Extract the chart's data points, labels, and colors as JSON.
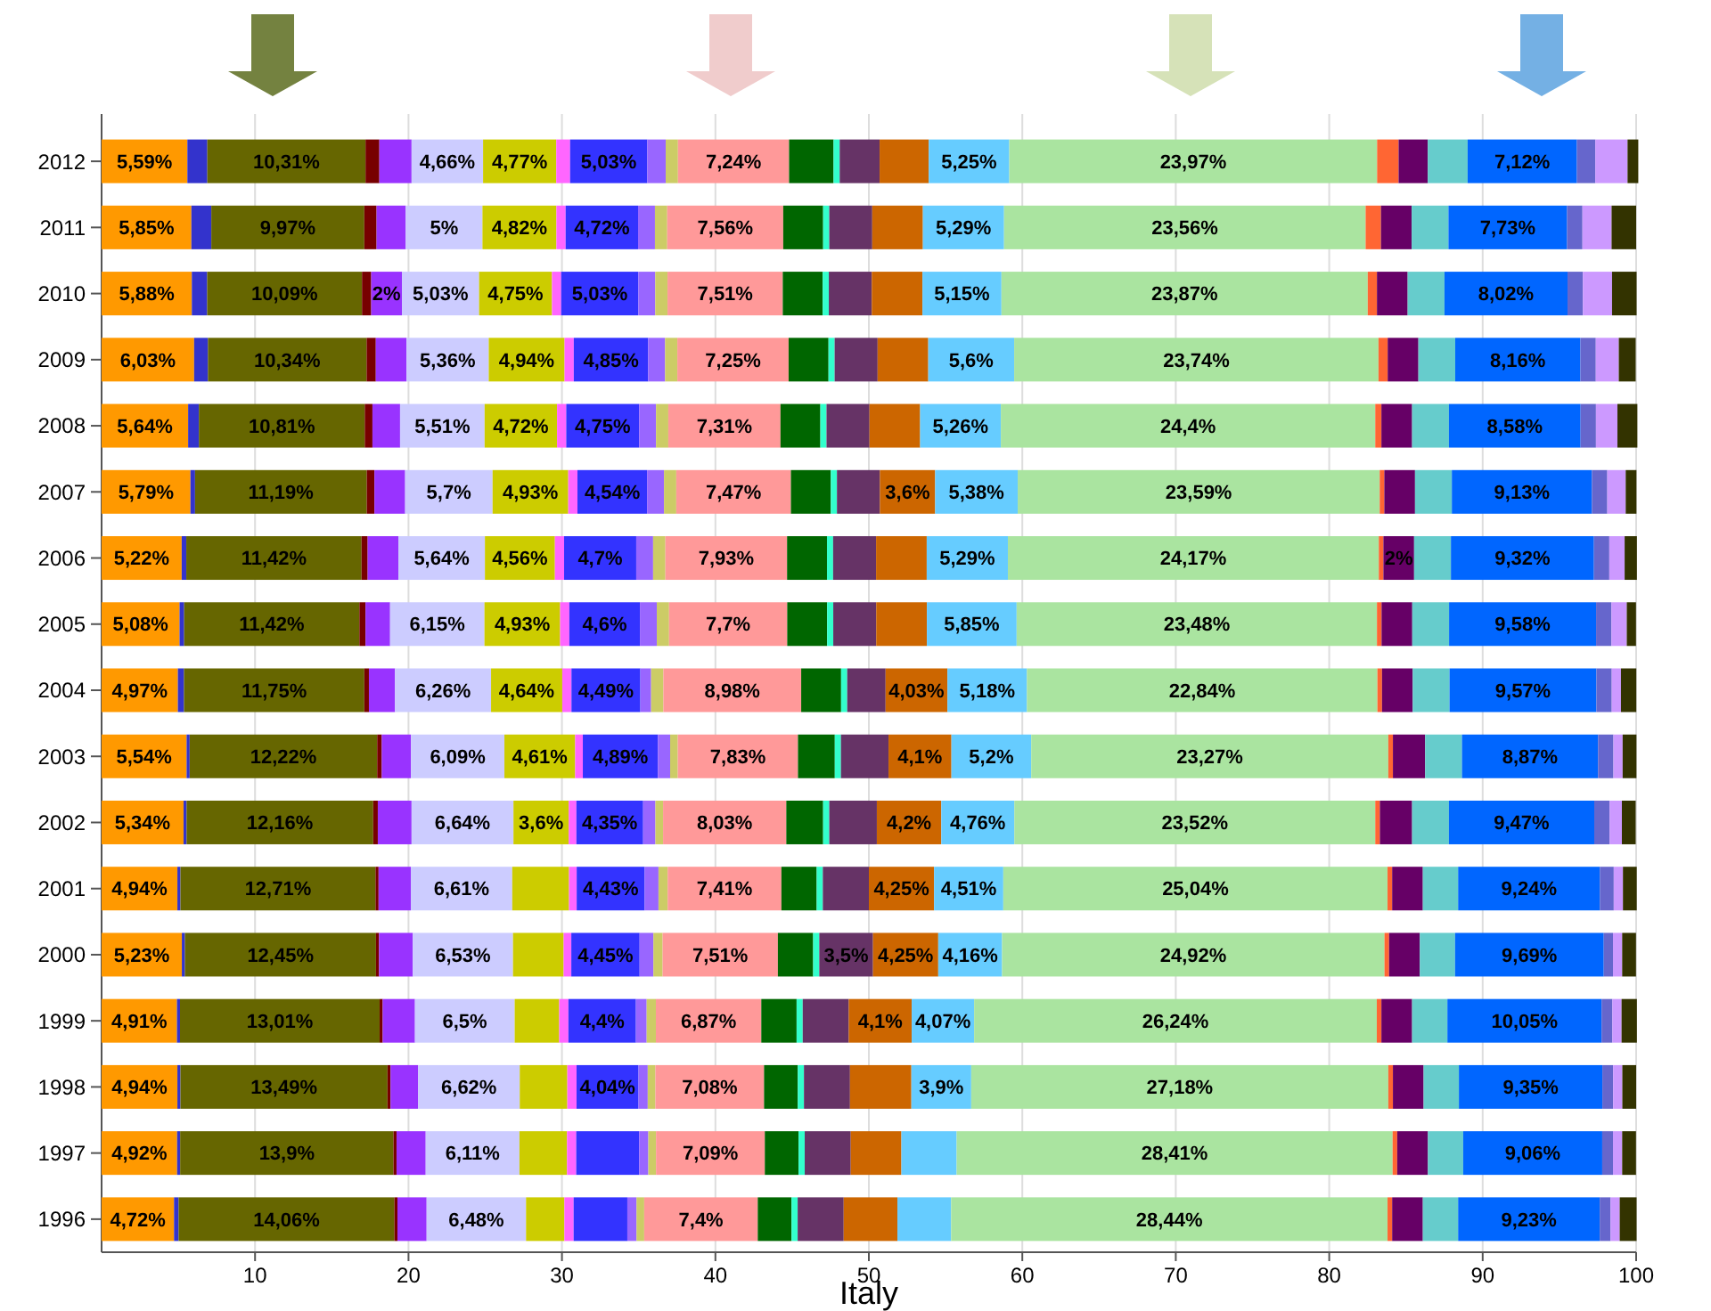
{
  "chart_data": {
    "type": "bar",
    "orientation": "horizontal",
    "stacked": true,
    "xlabel": "Italy",
    "xlim": [
      0,
      100
    ],
    "xticks": [
      10,
      20,
      30,
      40,
      50,
      60,
      70,
      80,
      90,
      100
    ],
    "grid": "x",
    "categories": [
      "2012",
      "2011",
      "2010",
      "2009",
      "2008",
      "2007",
      "2006",
      "2005",
      "2004",
      "2003",
      "2002",
      "2001",
      "2000",
      "1999",
      "1998",
      "1997",
      "1996"
    ],
    "series": [
      {
        "color": "#ff9900",
        "values": [
          5.59,
          5.85,
          5.88,
          6.03,
          5.64,
          5.79,
          5.22,
          5.08,
          4.97,
          5.54,
          5.34,
          4.94,
          5.23,
          4.91,
          4.94,
          4.92,
          4.72
        ],
        "value_labels": [
          "5,59%",
          "5,85%",
          "5,88%",
          "6,03%",
          "5,64%",
          "5,79%",
          "5,22%",
          "5,08%",
          "4,97%",
          "5,54%",
          "5,34%",
          "4,94%",
          "5,23%",
          "4,91%",
          "4,94%",
          "4,92%",
          "4,72%"
        ]
      },
      {
        "color": "#3333cc",
        "values": [
          1.3,
          1.3,
          1.0,
          0.9,
          0.7,
          0.3,
          0.3,
          0.3,
          0.4,
          0.2,
          0.2,
          0.2,
          0.2,
          0.2,
          0.2,
          0.2,
          0.3
        ]
      },
      {
        "color": "#666600",
        "values": [
          10.31,
          9.97,
          10.09,
          10.34,
          10.81,
          11.19,
          11.42,
          11.42,
          11.75,
          12.22,
          12.16,
          12.71,
          12.45,
          13.01,
          13.49,
          13.9,
          14.06
        ],
        "value_labels": [
          "10,31%",
          "9,97%",
          "10,09%",
          "10,34%",
          "10,81%",
          "11,19%",
          "11,42%",
          "11,42%",
          "11,75%",
          "12,22%",
          "12,16%",
          "12,71%",
          "12,45%",
          "13,01%",
          "13,49%",
          "13,9%",
          "14,06%"
        ]
      },
      {
        "color": "#770000",
        "values": [
          0.9,
          0.8,
          0.6,
          0.6,
          0.5,
          0.5,
          0.4,
          0.4,
          0.3,
          0.3,
          0.3,
          0.2,
          0.2,
          0.2,
          0.2,
          0.2,
          0.2
        ]
      },
      {
        "color": "#9933ff",
        "values": [
          2.1,
          1.9,
          2,
          2.0,
          1.8,
          2.0,
          2.0,
          1.6,
          1.7,
          1.9,
          2.2,
          2.1,
          2.2,
          2.1,
          1.8,
          1.9,
          1.9
        ],
        "value_labels": [
          null,
          null,
          "2%",
          null,
          null,
          null,
          null,
          null,
          null,
          null,
          null,
          null,
          null,
          null,
          null,
          null,
          null
        ]
      },
      {
        "color": "#ccccff",
        "values": [
          4.66,
          5,
          5.03,
          5.36,
          5.51,
          5.7,
          5.64,
          6.15,
          6.26,
          6.09,
          6.64,
          6.61,
          6.53,
          6.5,
          6.62,
          6.11,
          6.48
        ],
        "value_labels": [
          "4,66%",
          "5%",
          "5,03%",
          "5,36%",
          "5,51%",
          "5,7%",
          "5,64%",
          "6,15%",
          "6,26%",
          "6,09%",
          "6,64%",
          "6,61%",
          "6,53%",
          "6,5%",
          "6,62%",
          "6,11%",
          "6,48%"
        ]
      },
      {
        "color": "#cccc00",
        "values": [
          4.77,
          4.82,
          4.75,
          4.94,
          4.72,
          4.93,
          4.56,
          4.93,
          4.64,
          4.61,
          3.6,
          3.7,
          3.3,
          2.9,
          3.1,
          3.1,
          2.5
        ],
        "value_labels": [
          "4,77%",
          "4,82%",
          "4,75%",
          "4,94%",
          "4,72%",
          "4,93%",
          "4,56%",
          "4,93%",
          "4,64%",
          "4,61%",
          "3,6%",
          null,
          null,
          null,
          null,
          null,
          null
        ]
      },
      {
        "color": "#ff66ff",
        "values": [
          0.9,
          0.6,
          0.6,
          0.6,
          0.6,
          0.6,
          0.6,
          0.6,
          0.6,
          0.5,
          0.5,
          0.5,
          0.5,
          0.6,
          0.6,
          0.6,
          0.6
        ]
      },
      {
        "color": "#3333ff",
        "values": [
          5.03,
          4.72,
          5.03,
          4.85,
          4.75,
          4.54,
          4.7,
          4.6,
          4.49,
          4.89,
          4.35,
          4.43,
          4.45,
          4.4,
          4.04,
          4.1,
          3.5
        ],
        "value_labels": [
          "5,03%",
          "4,72%",
          "5,03%",
          "4,85%",
          "4,75%",
          "4,54%",
          "4,7%",
          "4,6%",
          "4,49%",
          "4,89%",
          "4,35%",
          "4,43%",
          "4,45%",
          "4,4%",
          "4,04%",
          null,
          null
        ]
      },
      {
        "color": "#9966ff",
        "values": [
          1.2,
          1.1,
          1.1,
          1.1,
          1.1,
          1.1,
          1.1,
          1.1,
          0.7,
          0.8,
          0.8,
          0.9,
          0.9,
          0.7,
          0.6,
          0.6,
          0.6
        ]
      },
      {
        "color": "#cccc66",
        "values": [
          0.8,
          0.8,
          0.8,
          0.8,
          0.8,
          0.8,
          0.8,
          0.8,
          0.8,
          0.5,
          0.5,
          0.6,
          0.6,
          0.6,
          0.5,
          0.5,
          0.5
        ]
      },
      {
        "color": "#ff9999",
        "values": [
          7.24,
          7.56,
          7.51,
          7.25,
          7.31,
          7.47,
          7.93,
          7.7,
          8.98,
          7.83,
          8.03,
          7.41,
          7.51,
          6.87,
          7.08,
          7.09,
          7.4
        ],
        "value_labels": [
          "7,24%",
          "7,56%",
          "7,51%",
          "7,25%",
          "7,31%",
          "7,47%",
          "7,93%",
          "7,7%",
          "8,98%",
          "7,83%",
          "8,03%",
          "7,41%",
          "7,51%",
          "6,87%",
          "7,08%",
          "7,09%",
          "7,4%"
        ]
      },
      {
        "color": "#006600",
        "values": [
          2.9,
          2.6,
          2.6,
          2.6,
          2.6,
          2.6,
          2.6,
          2.6,
          2.6,
          2.4,
          2.4,
          2.3,
          2.3,
          2.3,
          2.2,
          2.2,
          2.2
        ]
      },
      {
        "color": "#33ffcc",
        "values": [
          0.4,
          0.4,
          0.4,
          0.4,
          0.4,
          0.4,
          0.4,
          0.4,
          0.4,
          0.4,
          0.4,
          0.4,
          0.4,
          0.4,
          0.4,
          0.4,
          0.4
        ]
      },
      {
        "color": "#663366",
        "values": [
          2.6,
          2.8,
          2.8,
          2.8,
          2.8,
          2.8,
          2.8,
          2.8,
          2.5,
          3.1,
          3.1,
          3.0,
          3.5,
          3.0,
          3.0,
          3.0,
          3.0
        ],
        "value_labels": [
          null,
          null,
          null,
          null,
          null,
          null,
          null,
          null,
          null,
          null,
          null,
          null,
          "3,5%",
          null,
          null,
          null,
          null
        ]
      },
      {
        "color": "#cc6600",
        "values": [
          3.2,
          3.3,
          3.3,
          3.3,
          3.3,
          3.6,
          3.3,
          3.3,
          4.03,
          4.1,
          4.2,
          4.25,
          4.25,
          4.1,
          4.0,
          3.3,
          3.5
        ],
        "value_labels": [
          null,
          null,
          null,
          null,
          null,
          "3,6%",
          null,
          null,
          "4,03%",
          "4,1%",
          "4,2%",
          "4,25%",
          "4,25%",
          "4,1%",
          null,
          null,
          null
        ]
      },
      {
        "color": "#66ccff",
        "values": [
          5.25,
          5.29,
          5.15,
          5.6,
          5.26,
          5.38,
          5.29,
          5.85,
          5.18,
          5.2,
          4.76,
          4.51,
          4.16,
          4.07,
          3.9,
          3.6,
          3.5
        ],
        "value_labels": [
          "5,25%",
          "5,29%",
          "5,15%",
          "5,6%",
          "5,26%",
          "5,38%",
          "5,29%",
          "5,85%",
          "5,18%",
          "5,2%",
          "4,76%",
          "4,51%",
          "4,16%",
          "4,07%",
          "3,9%",
          null,
          null
        ]
      },
      {
        "color": "#aae4a0",
        "values": [
          23.97,
          23.56,
          23.87,
          23.74,
          24.4,
          23.59,
          24.17,
          23.48,
          22.84,
          23.27,
          23.52,
          25.04,
          24.92,
          26.24,
          27.18,
          28.41,
          28.44
        ],
        "value_labels": [
          "23,97%",
          "23,56%",
          "23,87%",
          "23,74%",
          "24,4%",
          "23,59%",
          "24,17%",
          "23,48%",
          "22,84%",
          "23,27%",
          "23,52%",
          "25,04%",
          "24,92%",
          "26,24%",
          "27,18%",
          "28,41%",
          "28,44%"
        ]
      },
      {
        "color": "#ff6633",
        "values": [
          1.4,
          1.0,
          0.6,
          0.6,
          0.4,
          0.3,
          0.3,
          0.3,
          0.3,
          0.3,
          0.3,
          0.3,
          0.3,
          0.3,
          0.3,
          0.3,
          0.3
        ]
      },
      {
        "color": "#660066",
        "values": [
          1.9,
          2.0,
          2.0,
          2.0,
          2.0,
          2.0,
          2,
          2.0,
          2.0,
          2.1,
          2.1,
          2.0,
          2.0,
          2.0,
          2.0,
          2.0,
          2.0
        ],
        "value_labels": [
          null,
          null,
          null,
          null,
          null,
          null,
          "2%",
          null,
          null,
          null,
          null,
          null,
          null,
          null,
          null,
          null,
          null
        ]
      },
      {
        "color": "#66cccc",
        "values": [
          2.6,
          2.4,
          2.4,
          2.4,
          2.4,
          2.4,
          2.4,
          2.4,
          2.4,
          2.4,
          2.4,
          2.3,
          2.3,
          2.3,
          2.3,
          2.3,
          2.3
        ]
      },
      {
        "color": "#0066ff",
        "values": [
          7.12,
          7.73,
          8.02,
          8.16,
          8.58,
          9.13,
          9.32,
          9.58,
          9.57,
          8.87,
          9.47,
          9.24,
          9.69,
          10.05,
          9.35,
          9.06,
          9.23
        ],
        "value_labels": [
          "7,12%",
          "7,73%",
          "8,02%",
          "8,16%",
          "8,58%",
          "9,13%",
          "9,32%",
          "9,58%",
          "9,57%",
          "8,87%",
          "9,47%",
          "9,24%",
          "9,69%",
          "10,05%",
          "9,35%",
          "9,06%",
          "9,23%"
        ]
      },
      {
        "color": "#6666cc",
        "values": [
          1.2,
          1.0,
          1.0,
          1.0,
          1.0,
          1.0,
          1.0,
          1.0,
          1.0,
          1.0,
          1.0,
          0.9,
          0.6,
          0.7,
          0.7,
          0.7,
          0.7
        ]
      },
      {
        "color": "#cc99ff",
        "values": [
          2.1,
          1.9,
          1.9,
          1.5,
          1.4,
          1.2,
          1.0,
          1.0,
          0.6,
          0.6,
          0.8,
          0.6,
          0.6,
          0.6,
          0.6,
          0.6,
          0.6
        ]
      },
      {
        "color": "#333300",
        "values": [
          0.7,
          1.6,
          1.6,
          1.1,
          1.3,
          0.7,
          0.8,
          0.6,
          1.0,
          0.9,
          0.9,
          0.9,
          0.9,
          1.0,
          0.9,
          0.9,
          1.1
        ]
      }
    ]
  }
}
